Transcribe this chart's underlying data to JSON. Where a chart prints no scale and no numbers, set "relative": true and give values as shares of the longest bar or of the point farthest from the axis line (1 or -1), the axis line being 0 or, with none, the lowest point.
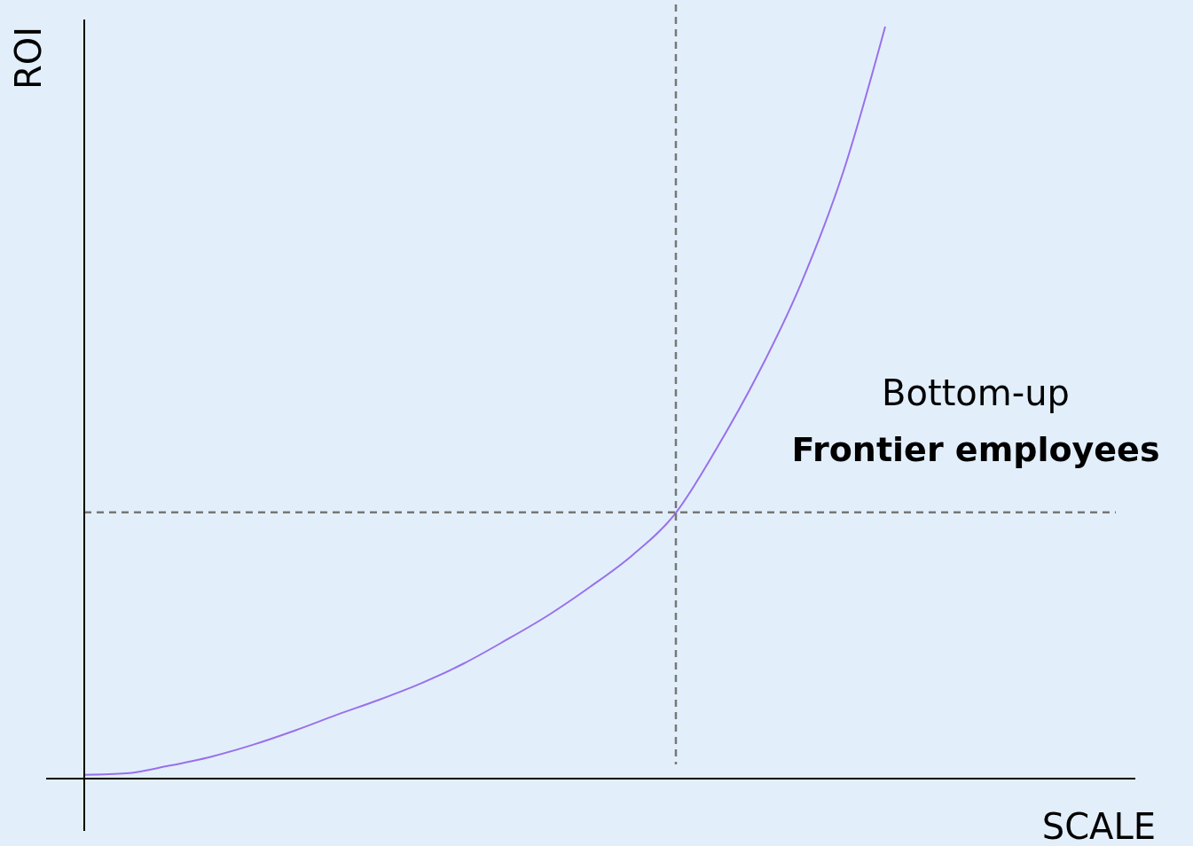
{
  "chart_data": {
    "type": "line",
    "relative": true,
    "xlabel": "SCALE",
    "ylabel": "ROI",
    "categories": [
      null,
      null,
      null,
      null,
      null,
      null,
      null,
      null,
      null,
      null,
      null,
      null,
      null,
      null,
      null,
      null,
      null,
      null,
      null,
      null
    ],
    "series": [
      {
        "color": "#9a70ec",
        "values": [
          0.005,
          0.007,
          0.017,
          0.029,
          0.045,
          0.064,
          0.085,
          0.105,
          0.127,
          0.153,
          0.184,
          0.217,
          0.255,
          0.297,
          0.351,
          0.439,
          0.54,
          0.658,
          0.806,
          1
        ]
      }
    ],
    "ref_lines": [
      {
        "axis": "y",
        "value": 0.354,
        "color": "#777777",
        "line_style": "dashed"
      }
    ],
    "annotations": [
      "Bottom-up",
      "Frontier employees"
    ],
    "marker": "none",
    "line_style": "solid",
    "grid": false
  }
}
